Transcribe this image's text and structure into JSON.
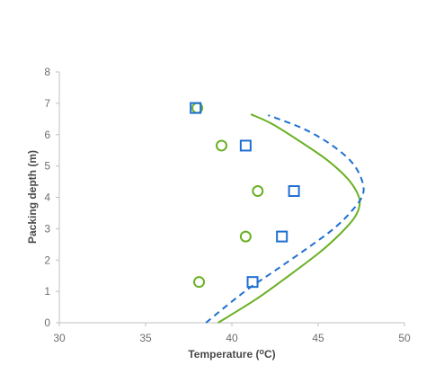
{
  "chart_data": {
    "type": "scatter",
    "xlabel": "Temperature (°C)",
    "xlabel_parts": {
      "pre": "Temperature (",
      "sup": "o",
      "post": "C)"
    },
    "ylabel": "Packing depth (m)",
    "xlim": [
      30,
      50
    ],
    "ylim": [
      0,
      8
    ],
    "xticks": [
      30,
      35,
      40,
      45,
      50
    ],
    "yticks": [
      0,
      1,
      2,
      3,
      4,
      5,
      6,
      7,
      8
    ],
    "grid": false,
    "legend": "none",
    "colors": {
      "green": "#6ab023",
      "blue": "#1f6fd1",
      "axis": "#c0c0c0"
    },
    "series": [
      {
        "kind": "points",
        "marker": "circle",
        "color": "#6ab023",
        "points": [
          {
            "x": 38.1,
            "y": 1.3
          },
          {
            "x": 40.8,
            "y": 2.75
          },
          {
            "x": 41.5,
            "y": 4.2
          },
          {
            "x": 39.4,
            "y": 5.65
          },
          {
            "x": 38.0,
            "y": 6.85
          }
        ]
      },
      {
        "kind": "points",
        "marker": "square",
        "color": "#1f6fd1",
        "points": [
          {
            "x": 41.2,
            "y": 1.3
          },
          {
            "x": 42.9,
            "y": 2.75
          },
          {
            "x": 43.6,
            "y": 4.2
          },
          {
            "x": 40.8,
            "y": 5.65
          },
          {
            "x": 37.9,
            "y": 6.85
          }
        ]
      },
      {
        "kind": "line",
        "style": "solid",
        "color": "#6ab023",
        "points": [
          {
            "x": 39.2,
            "y": 0.0
          },
          {
            "x": 41.4,
            "y": 0.75
          },
          {
            "x": 43.3,
            "y": 1.5
          },
          {
            "x": 45.1,
            "y": 2.25
          },
          {
            "x": 46.3,
            "y": 2.85
          },
          {
            "x": 47.1,
            "y": 3.35
          },
          {
            "x": 47.4,
            "y": 3.75
          },
          {
            "x": 47.3,
            "y": 4.1
          },
          {
            "x": 46.7,
            "y": 4.6
          },
          {
            "x": 45.5,
            "y": 5.2
          },
          {
            "x": 43.9,
            "y": 5.8
          },
          {
            "x": 42.3,
            "y": 6.35
          },
          {
            "x": 41.1,
            "y": 6.65
          }
        ]
      },
      {
        "kind": "line",
        "style": "dashed",
        "color": "#1f6fd1",
        "points": [
          {
            "x": 38.5,
            "y": 0.0
          },
          {
            "x": 39.6,
            "y": 0.5
          },
          {
            "x": 41.0,
            "y": 1.1
          },
          {
            "x": 42.6,
            "y": 1.7
          },
          {
            "x": 44.3,
            "y": 2.35
          },
          {
            "x": 45.9,
            "y": 3.0
          },
          {
            "x": 47.0,
            "y": 3.6
          },
          {
            "x": 47.6,
            "y": 4.1
          },
          {
            "x": 47.5,
            "y": 4.6
          },
          {
            "x": 46.9,
            "y": 5.15
          },
          {
            "x": 45.7,
            "y": 5.7
          },
          {
            "x": 44.1,
            "y": 6.2
          },
          {
            "x": 42.1,
            "y": 6.62
          }
        ]
      }
    ]
  }
}
